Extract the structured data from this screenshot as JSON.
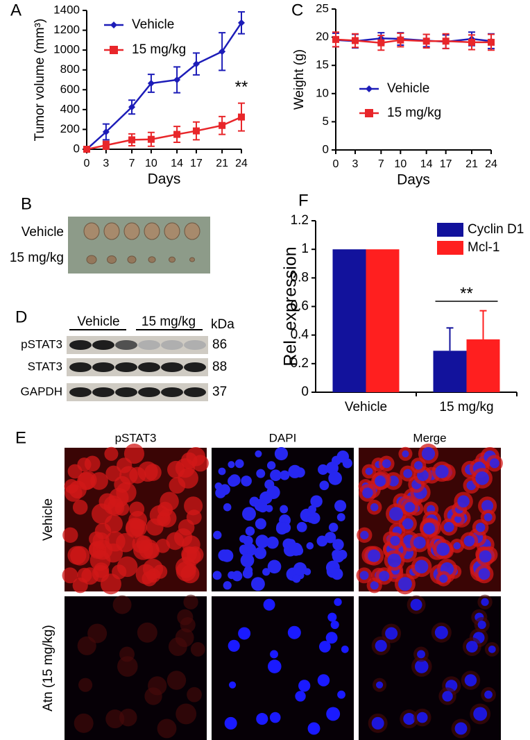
{
  "chart_data": [
    {
      "type": "line",
      "panel": "A",
      "xlabel": "Days",
      "ylabel": "Tumor volume (mm³)",
      "x": [
        0,
        3,
        7,
        10,
        14,
        17,
        21,
        24
      ],
      "xlim": [
        0,
        24
      ],
      "xticks": [
        0,
        3,
        7,
        10,
        14,
        17,
        21,
        24
      ],
      "ylim": [
        0,
        1400
      ],
      "yticks": [
        0,
        200,
        400,
        600,
        800,
        1000,
        1200,
        1400
      ],
      "series": [
        {
          "name": "Vehicle",
          "color": "#1c1cb8",
          "marker": "diamond",
          "values": [
            0,
            175,
            425,
            665,
            700,
            860,
            985,
            1275
          ],
          "errors": [
            null,
            80,
            70,
            90,
            130,
            110,
            190,
            110
          ]
        },
        {
          "name": "15 mg/kg",
          "color": "#e8262a",
          "marker": "square",
          "values": [
            0,
            40,
            95,
            100,
            150,
            185,
            240,
            325
          ],
          "errors": [
            null,
            40,
            60,
            70,
            80,
            90,
            90,
            140
          ]
        }
      ],
      "annotation": "**"
    },
    {
      "type": "line",
      "panel": "C",
      "xlabel": "Days",
      "ylabel": "Weight (g)",
      "x": [
        0,
        3,
        7,
        10,
        14,
        17,
        21,
        24
      ],
      "xlim": [
        0,
        24
      ],
      "xticks": [
        0,
        3,
        7,
        10,
        14,
        17,
        21,
        24
      ],
      "ylim": [
        0,
        25
      ],
      "yticks": [
        0,
        5,
        10,
        15,
        20,
        25
      ],
      "series": [
        {
          "name": "Vehicle",
          "color": "#1c1cb8",
          "marker": "diamond",
          "values": [
            19.5,
            19.3,
            19.8,
            19.7,
            19.4,
            19.2,
            19.7,
            19.3
          ],
          "errors": [
            1.2,
            1.2,
            1,
            1.1,
            1.1,
            1.2,
            1.2,
            1.3
          ]
        },
        {
          "name": "15 mg/kg",
          "color": "#e8262a",
          "marker": "square",
          "values": [
            19.6,
            19.4,
            19,
            19.5,
            19.3,
            19.3,
            19.1,
            19.1
          ],
          "errors": [
            1.3,
            1.2,
            1.3,
            1.2,
            1.2,
            1.3,
            1.3,
            1.4
          ]
        }
      ]
    },
    {
      "type": "bar",
      "panel": "F",
      "ylabel": "Rel. expression",
      "categories": [
        "Vehicle",
        "15 mg/kg"
      ],
      "ylim": [
        0,
        1.2
      ],
      "yticks": [
        0,
        0.2,
        0.4,
        0.6,
        0.8,
        1,
        1.2
      ],
      "series": [
        {
          "name": "Cyclin D1",
          "color": "#12129c",
          "values": [
            1,
            0.29
          ],
          "errors": [
            null,
            0.16
          ]
        },
        {
          "name": "Mcl-1",
          "color": "#ff1f1f",
          "values": [
            1,
            0.37
          ],
          "errors": [
            null,
            0.2
          ]
        }
      ],
      "annotation": "**"
    }
  ],
  "panel_b": {
    "label": "B",
    "rows": [
      "Vehicle",
      "15 mg/kg"
    ]
  },
  "panel_d": {
    "label": "D",
    "groups": [
      "Vehicle",
      "15 mg/kg"
    ],
    "unit": "kDa",
    "rows": [
      {
        "name": "pSTAT3",
        "size": "86"
      },
      {
        "name": "STAT3",
        "size": "88"
      },
      {
        "name": "GAPDH",
        "size": "37"
      }
    ]
  },
  "panel_e": {
    "label": "E",
    "columns": [
      "pSTAT3",
      "DAPI",
      "Merge"
    ],
    "rows": [
      "Vehicle",
      "Atn (15 mg/kg)"
    ]
  }
}
